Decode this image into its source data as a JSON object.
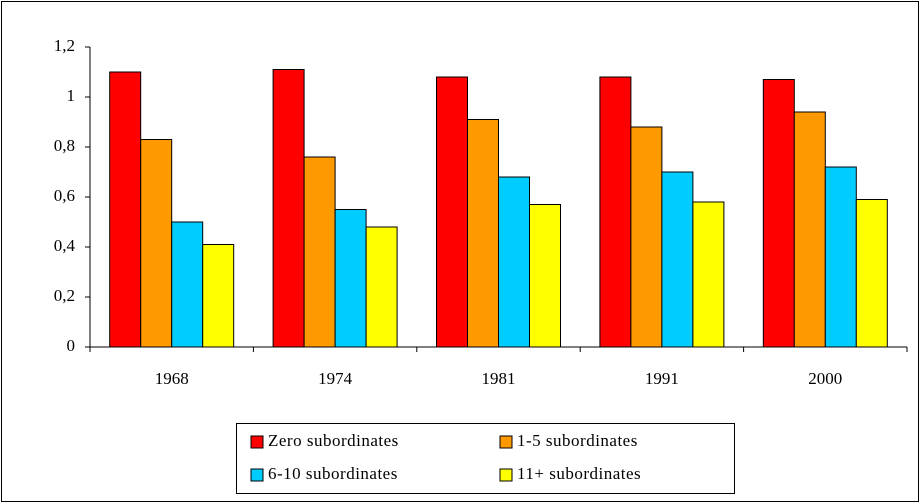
{
  "chart_data": {
    "type": "bar",
    "categories": [
      "1968",
      "1974",
      "1981",
      "1991",
      "2000"
    ],
    "series": [
      {
        "name": "Zero subordinates",
        "color": "#ff0000",
        "values": [
          1.1,
          1.11,
          1.08,
          1.08,
          1.07
        ]
      },
      {
        "name": "1-5 subordinates",
        "color": "#ff9900",
        "values": [
          0.83,
          0.76,
          0.91,
          0.88,
          0.94
        ]
      },
      {
        "name": "6-10 subordinates",
        "color": "#00ccff",
        "values": [
          0.5,
          0.55,
          0.68,
          0.7,
          0.72
        ]
      },
      {
        "name": "11+ subordinates",
        "color": "#ffff00",
        "values": [
          0.41,
          0.48,
          0.57,
          0.58,
          0.59
        ]
      }
    ],
    "ylim": [
      0,
      1.2
    ],
    "yticks": [
      0,
      {
        "value": 0.2,
        "label": "0,2"
      },
      {
        "value": 0.4,
        "label": "0,4"
      },
      {
        "value": 0.6,
        "label": "0,6"
      },
      {
        "value": 0.8,
        "label": "0,8"
      },
      1,
      {
        "value": 1.2,
        "label": "1,2"
      }
    ],
    "grid": false,
    "legend": "bottom"
  }
}
